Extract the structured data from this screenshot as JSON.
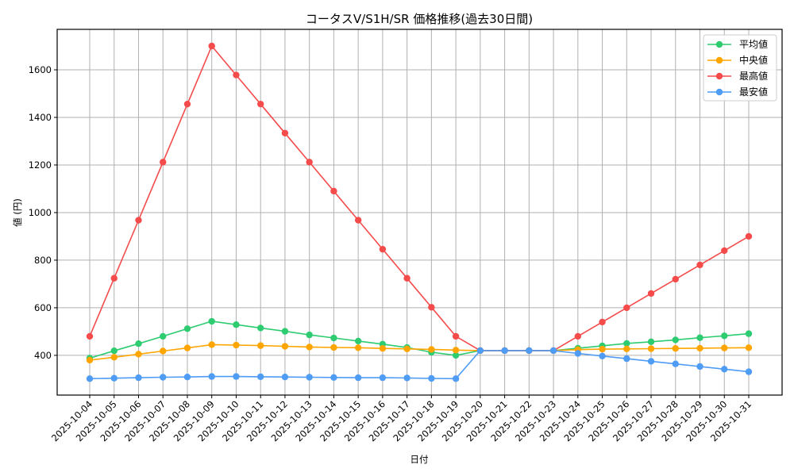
{
  "chart_data": {
    "type": "line",
    "title": "コータスV/S1H/SR 価格推移(過去30日間)",
    "xlabel": "日付",
    "ylabel": "値 (円)",
    "ylim": [
      233,
      1770
    ],
    "yticks": [
      400,
      600,
      800,
      1000,
      1200,
      1400,
      1600
    ],
    "grid": true,
    "legend_position": "upper right",
    "x": [
      "2025-10-04",
      "2025-10-05",
      "2025-10-06",
      "2025-10-07",
      "2025-10-08",
      "2025-10-09",
      "2025-10-10",
      "2025-10-11",
      "2025-10-12",
      "2025-10-13",
      "2025-10-14",
      "2025-10-15",
      "2025-10-16",
      "2025-10-17",
      "2025-10-18",
      "2025-10-19",
      "2025-10-20",
      "2025-10-21",
      "2025-10-22",
      "2025-10-23",
      "2025-10-24",
      "2025-10-25",
      "2025-10-26",
      "2025-10-27",
      "2025-10-28",
      "2025-10-29",
      "2025-10-30",
      "2025-10-31"
    ],
    "series": [
      {
        "name": "平均値",
        "color": "#2ecc71",
        "values": [
          388,
          419,
          449,
          480,
          512,
          543,
          529,
          515,
          501,
          486,
          473,
          460,
          447,
          433,
          413,
          400,
          420,
          420,
          420,
          420,
          430,
          440,
          450,
          457,
          465,
          474,
          482,
          491
        ]
      },
      {
        "name": "中央値",
        "color": "#ffa500",
        "values": [
          380,
          392,
          405,
          418,
          431,
          445,
          443,
          441,
          438,
          435,
          433,
          432,
          429,
          427,
          425,
          422,
          420,
          420,
          420,
          420,
          424,
          426,
          427,
          428,
          429,
          430,
          431,
          432
        ]
      },
      {
        "name": "最高値",
        "color": "#f54b4b",
        "values": [
          480,
          724,
          968,
          1212,
          1456,
          1700,
          1578,
          1456,
          1334,
          1212,
          1090,
          968,
          846,
          724,
          602,
          480,
          420,
          420,
          420,
          420,
          480,
          540,
          600,
          660,
          720,
          780,
          840,
          900
        ]
      },
      {
        "name": "最安値",
        "color": "#4f9cf5",
        "values": [
          302,
          304,
          306,
          308,
          309,
          311,
          311,
          310,
          309,
          308,
          307,
          306,
          306,
          305,
          303,
          302,
          420,
          420,
          420,
          420,
          408,
          397,
          386,
          375,
          364,
          353,
          342,
          331
        ]
      }
    ]
  }
}
